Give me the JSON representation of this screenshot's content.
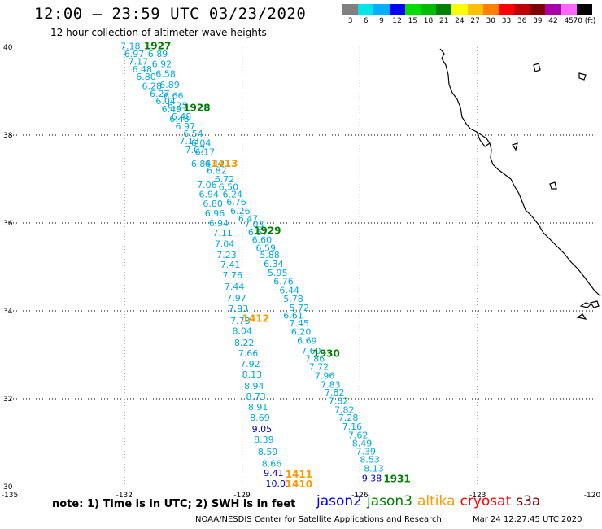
{
  "title": "12:00 – 23:59 UTC 03/23/2020",
  "subtitle": "12 hour collection of altimeter wave heights",
  "color_scale": {
    "labels": [
      "3",
      "6",
      "9",
      "12",
      "15",
      "18",
      "21",
      "24",
      "27",
      "30",
      "33",
      "36",
      "39",
      "42",
      "45",
      "70 (ft)"
    ],
    "colors": [
      "#808080",
      "#00e5e5",
      "#00b0ff",
      "#0000ff",
      "#00dd00",
      "#00bb00",
      "#008000",
      "#ffff00",
      "#ffc000",
      "#ff8000",
      "#ff0000",
      "#c00000",
      "#800000",
      "#aa00aa",
      "#ff66ff",
      "#000000"
    ]
  },
  "map": {
    "lon_ticks": [
      "-135",
      "-132",
      "-129",
      "-126",
      "-123",
      "-120"
    ],
    "lat_ticks": [
      "40",
      "38",
      "36",
      "34",
      "32",
      "30"
    ],
    "colors": {
      "jason3": "#008000",
      "altika": "#ff9900",
      "jason3_values": "#00aadd",
      "altika_values": "#00aadd",
      "blue_values": "#0000cc"
    },
    "pass_labels": [
      {
        "text": "1927",
        "sat": "jason3",
        "lon": -131.5,
        "lat": 39.95
      },
      {
        "text": "1928",
        "sat": "jason3",
        "lon": -130.5,
        "lat": 38.55
      },
      {
        "text": "1413",
        "sat": "altika",
        "lon": -129.8,
        "lat": 37.28
      },
      {
        "text": "1929",
        "sat": "jason3",
        "lon": -128.7,
        "lat": 35.75
      },
      {
        "text": "1412",
        "sat": "altika",
        "lon": -129.0,
        "lat": 33.75
      },
      {
        "text": "1930",
        "sat": "jason3",
        "lon": -127.2,
        "lat": 32.95
      },
      {
        "text": "1411",
        "sat": "altika",
        "lon": -127.9,
        "lat": 30.2
      },
      {
        "text": "1410",
        "sat": "altika",
        "lon": -127.9,
        "lat": 29.98
      },
      {
        "text": "1931",
        "sat": "jason3",
        "lon": -125.4,
        "lat": 30.1
      }
    ],
    "values": [
      {
        "t": "7.18",
        "lon": -132.1,
        "lat": 39.95,
        "c": "jason3_values"
      },
      {
        "t": "6.97",
        "lon": -132.0,
        "lat": 39.78,
        "c": "jason3_values"
      },
      {
        "t": "6.89",
        "lon": -131.4,
        "lat": 39.78,
        "c": "jason3_values"
      },
      {
        "t": "7.17",
        "lon": -131.9,
        "lat": 39.6,
        "c": "jason3_values"
      },
      {
        "t": "6.92",
        "lon": -131.3,
        "lat": 39.55,
        "c": "jason3_values"
      },
      {
        "t": "6.48",
        "lon": -131.8,
        "lat": 39.43,
        "c": "jason3_values"
      },
      {
        "t": "6.58",
        "lon": -131.2,
        "lat": 39.32,
        "c": "jason3_values"
      },
      {
        "t": "6.80",
        "lon": -131.7,
        "lat": 39.26,
        "c": "jason3_values"
      },
      {
        "t": "6.89",
        "lon": -131.1,
        "lat": 39.07,
        "c": "jason3_values"
      },
      {
        "t": "6.28",
        "lon": -131.55,
        "lat": 39.05,
        "c": "jason3_values"
      },
      {
        "t": "6.27",
        "lon": -131.35,
        "lat": 38.87,
        "c": "jason3_values"
      },
      {
        "t": "6.66",
        "lon": -131.0,
        "lat": 38.82,
        "c": "jason3_values"
      },
      {
        "t": "6.04",
        "lon": -131.2,
        "lat": 38.7,
        "c": "jason3_values"
      },
      {
        "t": "6.25",
        "lon": -130.9,
        "lat": 38.6,
        "c": "jason3_values"
      },
      {
        "t": "6.49",
        "lon": -131.05,
        "lat": 38.52,
        "c": "jason3_values"
      },
      {
        "t": "6.48",
        "lon": -130.8,
        "lat": 38.35,
        "c": "jason3_values"
      },
      {
        "t": "6.48",
        "lon": -130.85,
        "lat": 38.3,
        "c": "jason3_values"
      },
      {
        "t": "6.97",
        "lon": -130.7,
        "lat": 38.13,
        "c": "jason3_values"
      },
      {
        "t": "6.54",
        "lon": -130.5,
        "lat": 37.96,
        "c": "jason3_values"
      },
      {
        "t": "7.13",
        "lon": -130.6,
        "lat": 37.8,
        "c": "jason3_values"
      },
      {
        "t": "6.04",
        "lon": -130.3,
        "lat": 37.75,
        "c": "jason3_values"
      },
      {
        "t": "7.07",
        "lon": -130.45,
        "lat": 37.59,
        "c": "jason3_values"
      },
      {
        "t": "6.17",
        "lon": -130.2,
        "lat": 37.55,
        "c": "jason3_values"
      },
      {
        "t": "6.84",
        "lon": -130.3,
        "lat": 37.28,
        "c": "jason3_values"
      },
      {
        "t": "6.12",
        "lon": -129.95,
        "lat": 37.28,
        "c": "jason3_values"
      },
      {
        "t": "6.82",
        "lon": -129.9,
        "lat": 37.12,
        "c": "jason3_values"
      },
      {
        "t": "6.72",
        "lon": -129.7,
        "lat": 36.93,
        "c": "jason3_values"
      },
      {
        "t": "7.06",
        "lon": -130.15,
        "lat": 36.8,
        "c": "jason3_values"
      },
      {
        "t": "6.50",
        "lon": -129.6,
        "lat": 36.75,
        "c": "jason3_values"
      },
      {
        "t": "6.94",
        "lon": -130.1,
        "lat": 36.58,
        "c": "jason3_values"
      },
      {
        "t": "6.24",
        "lon": -129.5,
        "lat": 36.58,
        "c": "jason3_values"
      },
      {
        "t": "6.80",
        "lon": -130.0,
        "lat": 36.37,
        "c": "jason3_values"
      },
      {
        "t": "6.76",
        "lon": -129.4,
        "lat": 36.41,
        "c": "jason3_values"
      },
      {
        "t": "6.96",
        "lon": -129.95,
        "lat": 36.15,
        "c": "jason3_values"
      },
      {
        "t": "6.26",
        "lon": -129.3,
        "lat": 36.2,
        "c": "jason3_values"
      },
      {
        "t": "6.47",
        "lon": -129.1,
        "lat": 36.03,
        "c": "jason3_values"
      },
      {
        "t": "6.94",
        "lon": -129.85,
        "lat": 35.93,
        "c": "jason3_values"
      },
      {
        "t": "7.03",
        "lon": -128.95,
        "lat": 35.9,
        "c": "jason3_values"
      },
      {
        "t": "6.57",
        "lon": -128.85,
        "lat": 35.72,
        "c": "jason3_values"
      },
      {
        "t": "7.11",
        "lon": -129.75,
        "lat": 35.7,
        "c": "jason3_values"
      },
      {
        "t": "6.60",
        "lon": -128.75,
        "lat": 35.55,
        "c": "jason3_values"
      },
      {
        "t": "7.04",
        "lon": -129.7,
        "lat": 35.45,
        "c": "jason3_values"
      },
      {
        "t": "6.59",
        "lon": -128.65,
        "lat": 35.36,
        "c": "jason3_values"
      },
      {
        "t": "7.23",
        "lon": -129.65,
        "lat": 35.2,
        "c": "jason3_values"
      },
      {
        "t": "5.88",
        "lon": -128.55,
        "lat": 35.2,
        "c": "jason3_values"
      },
      {
        "t": "6.34",
        "lon": -128.45,
        "lat": 35.0,
        "c": "jason3_values"
      },
      {
        "t": "7.41",
        "lon": -129.55,
        "lat": 34.98,
        "c": "jason3_values"
      },
      {
        "t": "5.95",
        "lon": -128.35,
        "lat": 34.8,
        "c": "jason3_values"
      },
      {
        "t": "7.76",
        "lon": -129.5,
        "lat": 34.74,
        "c": "jason3_values"
      },
      {
        "t": "6.76",
        "lon": -128.2,
        "lat": 34.6,
        "c": "jason3_values"
      },
      {
        "t": "7.44",
        "lon": -129.45,
        "lat": 34.48,
        "c": "jason3_values"
      },
      {
        "t": "6.44",
        "lon": -128.05,
        "lat": 34.4,
        "c": "jason3_values"
      },
      {
        "t": "7.97",
        "lon": -129.4,
        "lat": 34.22,
        "c": "jason3_values"
      },
      {
        "t": "5.78",
        "lon": -127.95,
        "lat": 34.2,
        "c": "jason3_values"
      },
      {
        "t": "7.93",
        "lon": -129.35,
        "lat": 33.98,
        "c": "jason3_values"
      },
      {
        "t": "5.72",
        "lon": -127.8,
        "lat": 34.0,
        "c": "jason3_values"
      },
      {
        "t": "6.61",
        "lon": -127.95,
        "lat": 33.82,
        "c": "jason3_values"
      },
      {
        "t": "7.73",
        "lon": -129.3,
        "lat": 33.7,
        "c": "jason3_values"
      },
      {
        "t": "7.45",
        "lon": -127.8,
        "lat": 33.65,
        "c": "jason3_values"
      },
      {
        "t": "8.04",
        "lon": -129.25,
        "lat": 33.47,
        "c": "jason3_values"
      },
      {
        "t": "6.20",
        "lon": -127.75,
        "lat": 33.45,
        "c": "jason3_values"
      },
      {
        "t": "8.22",
        "lon": -129.2,
        "lat": 33.2,
        "c": "jason3_values"
      },
      {
        "t": "6.69",
        "lon": -127.6,
        "lat": 33.25,
        "c": "jason3_values"
      },
      {
        "t": "7.60",
        "lon": -127.5,
        "lat": 33.02,
        "c": "jason3_values"
      },
      {
        "t": "7.66",
        "lon": -129.1,
        "lat": 32.96,
        "c": "jason3_values"
      },
      {
        "t": "7.86",
        "lon": -127.4,
        "lat": 32.84,
        "c": "jason3_values"
      },
      {
        "t": "7.92",
        "lon": -129.05,
        "lat": 32.72,
        "c": "jason3_values"
      },
      {
        "t": "7.72",
        "lon": -127.3,
        "lat": 32.66,
        "c": "jason3_values"
      },
      {
        "t": "8.13",
        "lon": -129.0,
        "lat": 32.48,
        "c": "jason3_values"
      },
      {
        "t": "7.96",
        "lon": -127.15,
        "lat": 32.45,
        "c": "jason3_values"
      },
      {
        "t": "7.83",
        "lon": -127.0,
        "lat": 32.25,
        "c": "jason3_values"
      },
      {
        "t": "8.94",
        "lon": -128.95,
        "lat": 32.22,
        "c": "jason3_values"
      },
      {
        "t": "7.82",
        "lon": -126.9,
        "lat": 32.07,
        "c": "jason3_values"
      },
      {
        "t": "8.73",
        "lon": -128.9,
        "lat": 31.98,
        "c": "jason3_values"
      },
      {
        "t": "7.82",
        "lon": -126.8,
        "lat": 31.88,
        "c": "jason3_values"
      },
      {
        "t": "8.91",
        "lon": -128.85,
        "lat": 31.74,
        "c": "jason3_values"
      },
      {
        "t": "7.82",
        "lon": -126.65,
        "lat": 31.68,
        "c": "jason3_values"
      },
      {
        "t": "8.69",
        "lon": -128.8,
        "lat": 31.5,
        "c": "jason3_values"
      },
      {
        "t": "7.28",
        "lon": -126.55,
        "lat": 31.5,
        "c": "jason3_values"
      },
      {
        "t": "7.16",
        "lon": -126.45,
        "lat": 31.3,
        "c": "jason3_values"
      },
      {
        "t": "9.05",
        "lon": -128.75,
        "lat": 31.24,
        "c": "blue_values"
      },
      {
        "t": "7.62",
        "lon": -126.3,
        "lat": 31.1,
        "c": "jason3_values"
      },
      {
        "t": "8.39",
        "lon": -128.7,
        "lat": 31.0,
        "c": "jason3_values"
      },
      {
        "t": "8.49",
        "lon": -126.2,
        "lat": 30.92,
        "c": "jason3_values"
      },
      {
        "t": "8.59",
        "lon": -128.6,
        "lat": 30.72,
        "c": "jason3_values"
      },
      {
        "t": "7.39",
        "lon": -126.1,
        "lat": 30.73,
        "c": "jason3_values"
      },
      {
        "t": "8.53",
        "lon": -126.0,
        "lat": 30.55,
        "c": "jason3_values"
      },
      {
        "t": "8.66",
        "lon": -128.5,
        "lat": 30.45,
        "c": "jason3_values"
      },
      {
        "t": "8.13",
        "lon": -125.9,
        "lat": 30.34,
        "c": "jason3_values"
      },
      {
        "t": "9.41",
        "lon": -128.45,
        "lat": 30.24,
        "c": "blue_values"
      },
      {
        "t": "9.38",
        "lon": -125.95,
        "lat": 30.12,
        "c": "blue_values"
      },
      {
        "t": "10.03",
        "lon": -128.4,
        "lat": 30.0,
        "c": "blue_values"
      }
    ]
  },
  "note": "note:  1) Time is in UTC;  2) SWH is in feet",
  "satellite_legend": [
    {
      "label": "jason2",
      "color": "#0000ff"
    },
    {
      "label": "jason3",
      "color": "#008000"
    },
    {
      "label": "altika",
      "color": "#ff9900"
    },
    {
      "label": "cryosat",
      "color": "#ff0000"
    },
    {
      "label": "s3a",
      "color": "#800000"
    }
  ],
  "credit": "NOAA/NESDIS Center for Satellite Applications and Research",
  "generated": "Mar 24 12:27:45 UTC 2020"
}
